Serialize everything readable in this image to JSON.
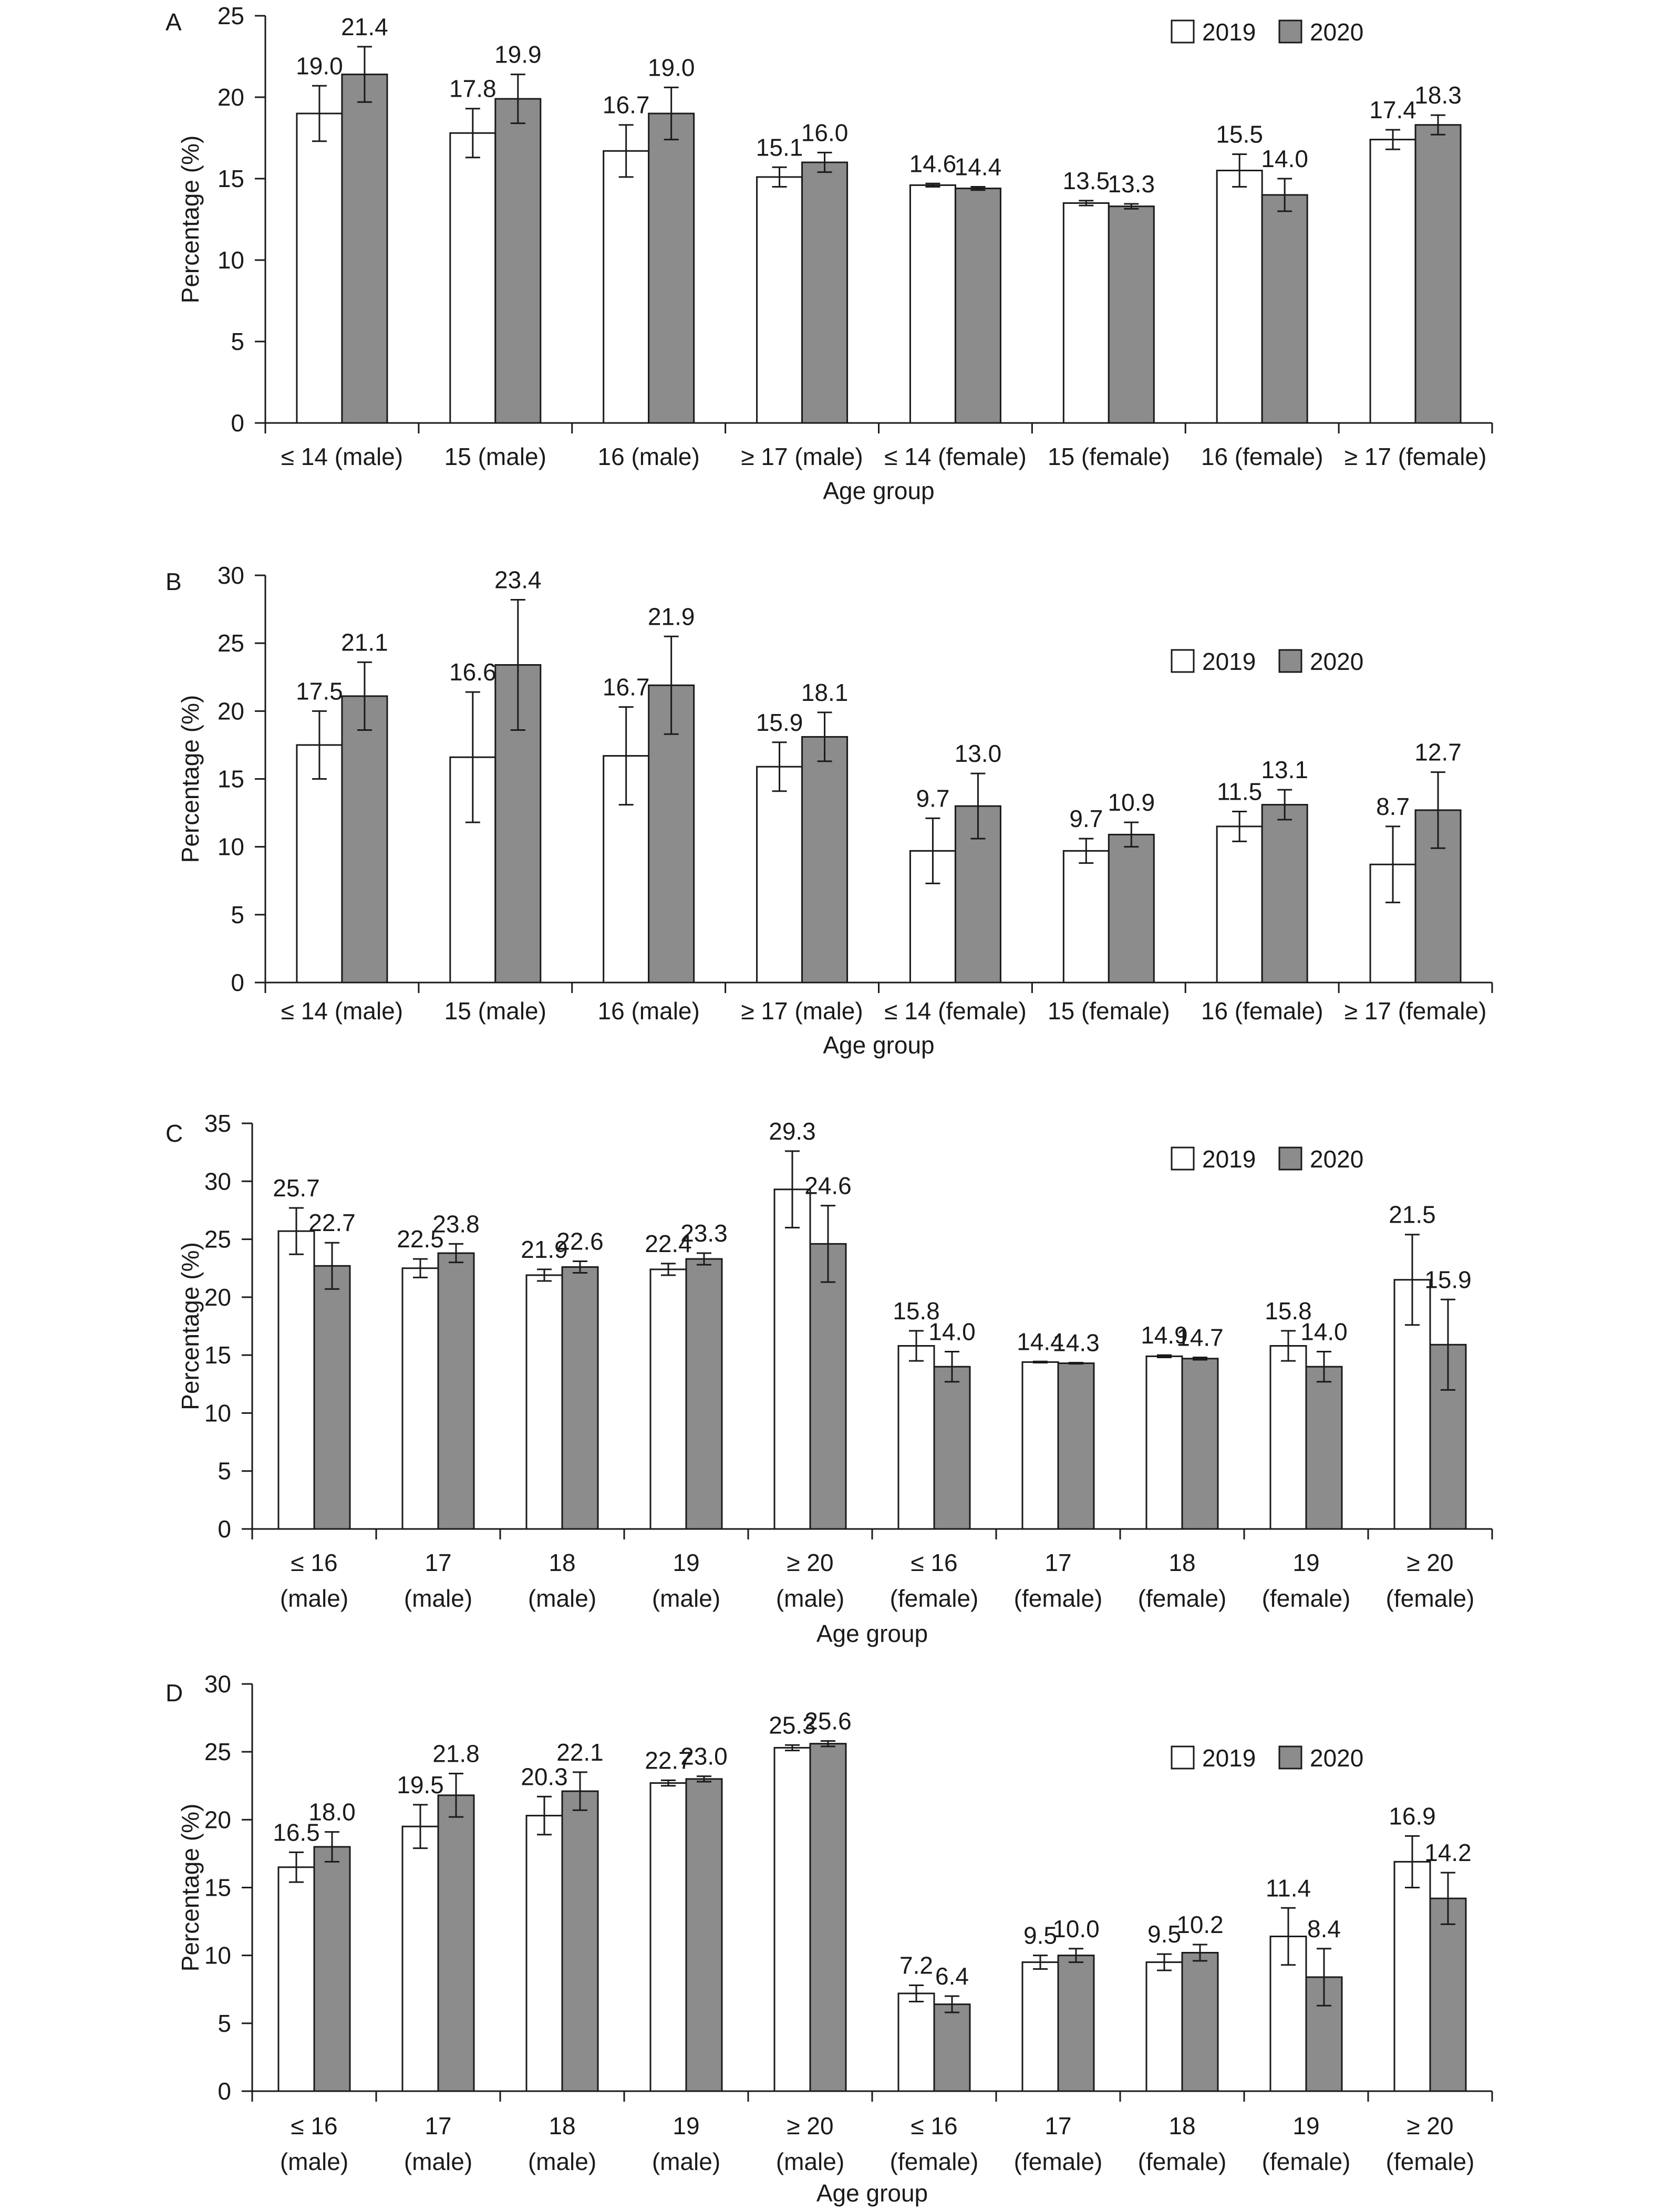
{
  "legend": {
    "year1": "2019",
    "year2": "2020",
    "color1": "#ffffff",
    "color2": "#8c8c8c"
  },
  "chart_data": [
    {
      "type": "bar",
      "panel_label": "A",
      "xlabel": "Age group",
      "ylabel": "Percentage (%)",
      "ylim": [
        0,
        25
      ],
      "yticks": [
        0,
        5,
        10,
        15,
        20,
        25
      ],
      "legend_position": "top-right",
      "categories": [
        [
          "≤ 14 (male)"
        ],
        [
          "15 (male)"
        ],
        [
          "16 (male)"
        ],
        [
          "≥ 17 (male)"
        ],
        [
          "≤ 14 (female)"
        ],
        [
          "15 (female)"
        ],
        [
          "16 (female)"
        ],
        [
          "≥ 17 (female)"
        ]
      ],
      "series": [
        {
          "name": "2019",
          "values": [
            19.0,
            17.8,
            16.7,
            15.1,
            14.6,
            13.5,
            15.5,
            17.4
          ],
          "errors": [
            1.7,
            1.5,
            1.6,
            0.6,
            0.1,
            0.15,
            1.0,
            0.6
          ]
        },
        {
          "name": "2020",
          "values": [
            21.4,
            19.9,
            19.0,
            16.0,
            14.4,
            13.3,
            14.0,
            18.3
          ],
          "errors": [
            1.7,
            1.5,
            1.6,
            0.6,
            0.1,
            0.15,
            1.0,
            0.6
          ]
        }
      ]
    },
    {
      "type": "bar",
      "panel_label": "B",
      "xlabel": "Age group",
      "ylabel": "Percentage (%)",
      "ylim": [
        0,
        30
      ],
      "yticks": [
        0,
        5,
        10,
        15,
        20,
        25,
        30
      ],
      "legend_position": "top-right",
      "categories": [
        [
          "≤ 14 (male)"
        ],
        [
          "15 (male)"
        ],
        [
          "16 (male)"
        ],
        [
          "≥ 17 (male)"
        ],
        [
          "≤ 14 (female)"
        ],
        [
          "15 (female)"
        ],
        [
          "16 (female)"
        ],
        [
          "≥ 17 (female)"
        ]
      ],
      "series": [
        {
          "name": "2019",
          "values": [
            17.5,
            16.6,
            16.7,
            15.9,
            9.7,
            9.7,
            11.5,
            8.7
          ],
          "errors": [
            2.5,
            4.8,
            3.6,
            1.8,
            2.4,
            0.9,
            1.1,
            2.8
          ]
        },
        {
          "name": "2020",
          "values": [
            21.1,
            23.4,
            21.9,
            18.1,
            13.0,
            10.9,
            13.1,
            12.7
          ],
          "errors": [
            2.5,
            4.8,
            3.6,
            1.8,
            2.4,
            0.9,
            1.1,
            2.8
          ]
        }
      ]
    },
    {
      "type": "bar",
      "panel_label": "C",
      "xlabel": "Age group",
      "ylabel": "Percentage (%)",
      "ylim": [
        0,
        35
      ],
      "yticks": [
        0,
        5,
        10,
        15,
        20,
        25,
        30,
        35
      ],
      "legend_position": "top-right",
      "categories": [
        [
          "≤ 16",
          "(male)"
        ],
        [
          "17",
          "(male)"
        ],
        [
          "18",
          "(male)"
        ],
        [
          "19",
          "(male)"
        ],
        [
          "≥ 20",
          "(male)"
        ],
        [
          "≤ 16",
          "(female)"
        ],
        [
          "17",
          "(female)"
        ],
        [
          "18",
          "(female)"
        ],
        [
          "19",
          "(female)"
        ],
        [
          "≥ 20",
          "(female)"
        ]
      ],
      "series": [
        {
          "name": "2019",
          "values": [
            25.7,
            22.5,
            21.9,
            22.4,
            29.3,
            15.8,
            14.4,
            14.9,
            15.8,
            21.5
          ],
          "errors": [
            2.0,
            0.8,
            0.5,
            0.5,
            3.3,
            1.3,
            0.05,
            0.1,
            1.3,
            3.9
          ]
        },
        {
          "name": "2020",
          "values": [
            22.7,
            23.8,
            22.6,
            23.3,
            24.6,
            14.0,
            14.3,
            14.7,
            14.0,
            15.9
          ],
          "errors": [
            2.0,
            0.8,
            0.5,
            0.5,
            3.3,
            1.3,
            0.05,
            0.1,
            1.3,
            3.9
          ]
        }
      ]
    },
    {
      "type": "bar",
      "panel_label": "D",
      "xlabel": "Age group",
      "ylabel": "Percentage (%)",
      "ylim": [
        0,
        30
      ],
      "yticks": [
        0,
        5,
        10,
        15,
        20,
        25,
        30
      ],
      "legend_position": "top-right",
      "categories": [
        [
          "≤ 16",
          "(male)"
        ],
        [
          "17",
          "(male)"
        ],
        [
          "18",
          "(male)"
        ],
        [
          "19",
          "(male)"
        ],
        [
          "≥ 20",
          "(male)"
        ],
        [
          "≤ 16",
          "(female)"
        ],
        [
          "17",
          "(female)"
        ],
        [
          "18",
          "(female)"
        ],
        [
          "19",
          "(female)"
        ],
        [
          "≥ 20",
          "(female)"
        ]
      ],
      "series": [
        {
          "name": "2019",
          "values": [
            16.5,
            19.5,
            20.3,
            22.7,
            25.3,
            7.2,
            9.5,
            9.5,
            11.4,
            16.9
          ],
          "errors": [
            1.1,
            1.6,
            1.4,
            0.2,
            0.2,
            0.6,
            0.5,
            0.6,
            2.1,
            1.9
          ]
        },
        {
          "name": "2020",
          "values": [
            18.0,
            21.8,
            22.1,
            23.0,
            25.6,
            6.4,
            10.0,
            10.2,
            8.4,
            14.2
          ],
          "errors": [
            1.1,
            1.6,
            1.4,
            0.2,
            0.2,
            0.6,
            0.5,
            0.6,
            2.1,
            1.9
          ]
        }
      ]
    }
  ]
}
